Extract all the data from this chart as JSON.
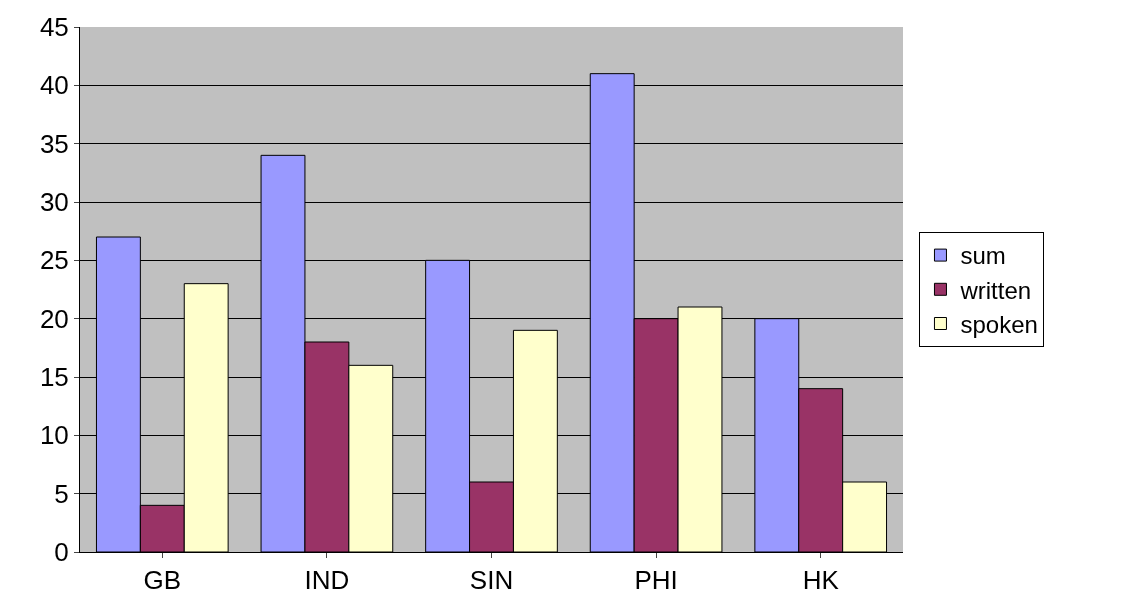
{
  "chart_data": {
    "type": "bar",
    "categories": [
      "GB",
      "IND",
      "SIN",
      "PHI",
      "HK"
    ],
    "series": [
      {
        "name": "sum",
        "color": "#9999ff",
        "values": [
          27,
          34,
          25,
          41,
          20
        ]
      },
      {
        "name": "written",
        "color": "#993366",
        "values": [
          4,
          18,
          6,
          20,
          14
        ]
      },
      {
        "name": "spoken",
        "color": "#ffffcc",
        "values": [
          23,
          16,
          19,
          21,
          6
        ]
      }
    ],
    "ylim": [
      0,
      45
    ],
    "yticks": [
      0,
      5,
      10,
      15,
      20,
      25,
      30,
      35,
      40,
      45
    ],
    "grid": "y",
    "legend": "right"
  }
}
